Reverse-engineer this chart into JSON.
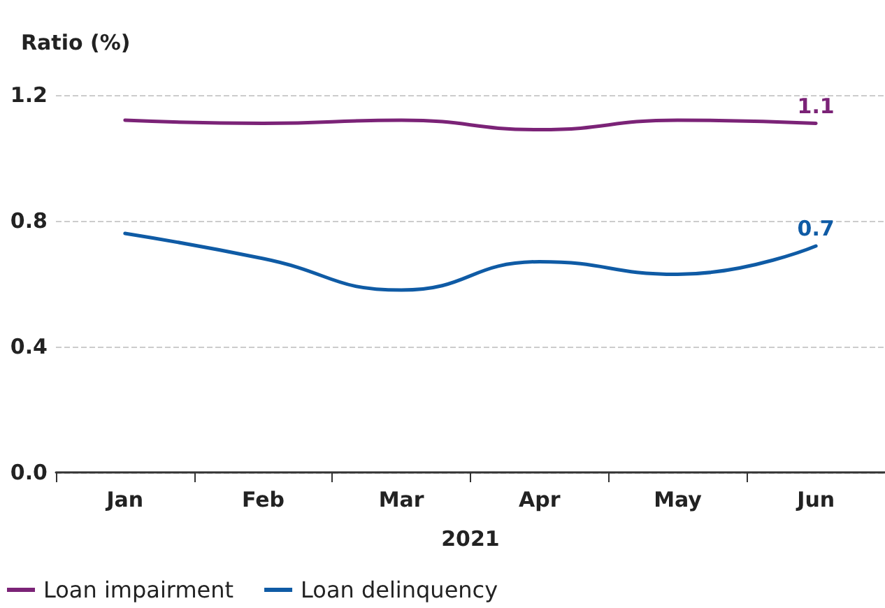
{
  "chart_data": {
    "type": "line",
    "ylabel": "Ratio (%)",
    "xlabel": "2021",
    "categories": [
      "Jan",
      "Feb",
      "Mar",
      "Apr",
      "May",
      "Jun"
    ],
    "series": [
      {
        "name": "Loan impairment",
        "color": "#7b2377",
        "values": [
          1.12,
          1.11,
          1.12,
          1.09,
          1.12,
          1.11
        ],
        "value_labels": [
          null,
          null,
          null,
          null,
          null,
          "1.1"
        ]
      },
      {
        "name": "Loan delinquency",
        "color": "#0f5ba5",
        "values": [
          0.76,
          0.68,
          0.58,
          0.67,
          0.63,
          0.72
        ],
        "value_labels": [
          null,
          null,
          null,
          null,
          null,
          "0.7"
        ]
      }
    ],
    "ylim": [
      0,
      1.2
    ],
    "yticks": [
      {
        "value": 0,
        "label": "0.0"
      },
      {
        "value": 0.4,
        "label": "0.4"
      },
      {
        "value": 0.8,
        "label": "0.8"
      },
      {
        "value": 1.2,
        "label": "1.2"
      }
    ],
    "grid": "y",
    "legend": "bottom",
    "marker": "none",
    "line_style": "solid"
  }
}
